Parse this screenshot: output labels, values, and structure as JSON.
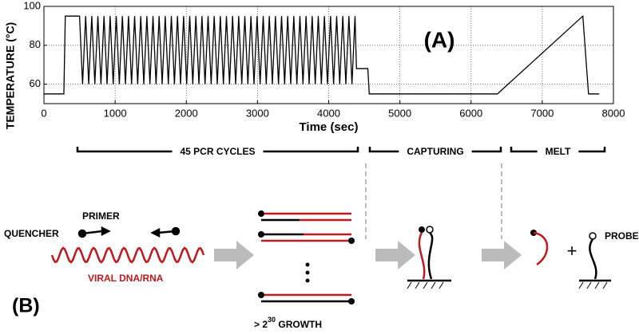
{
  "chart_data": {
    "type": "line",
    "xlabel": "Time (sec)",
    "ylabel": "TEMPERATURE (°C)",
    "annotations": [
      "(A)"
    ],
    "phases": [
      "45 PCR CYCLES",
      "CAPTURING",
      "MELT"
    ],
    "xlim": [
      0,
      8000
    ],
    "xticks": [
      0,
      1000,
      2000,
      3000,
      4000,
      5000,
      6000,
      7000,
      8000
    ],
    "ylim": [
      50,
      100
    ],
    "yticks": [
      60,
      80,
      100
    ],
    "grid": true,
    "series": [
      {
        "name": "Temperature",
        "color": "#000000",
        "x": [
          0,
          280,
          300,
          500,
          543,
          586,
          629,
          672,
          715,
          758,
          801,
          844,
          887,
          930,
          973,
          1016,
          1059,
          1102,
          1145,
          1188,
          1231,
          1274,
          1317,
          1360,
          1403,
          1446,
          1489,
          1532,
          1575,
          1618,
          1661,
          1704,
          1747,
          1790,
          1833,
          1876,
          1919,
          1962,
          2005,
          2048,
          2091,
          2134,
          2177,
          2220,
          2263,
          2306,
          2349,
          2392,
          2435,
          2478,
          2521,
          2564,
          2607,
          2650,
          2693,
          2736,
          2779,
          2822,
          2865,
          2908,
          2951,
          2994,
          3037,
          3080,
          3123,
          3166,
          3209,
          3252,
          3295,
          3338,
          3381,
          3424,
          3467,
          3510,
          3553,
          3596,
          3639,
          3682,
          3725,
          3768,
          3811,
          3854,
          3897,
          3940,
          3983,
          4026,
          4069,
          4112,
          4155,
          4198,
          4241,
          4284,
          4327,
          4370,
          4390,
          4550,
          4570,
          6370,
          7570,
          7650,
          7800
        ],
        "values": [
          55,
          55,
          95,
          95,
          60,
          95,
          60,
          95,
          60,
          95,
          60,
          95,
          60,
          95,
          60,
          95,
          60,
          95,
          60,
          95,
          60,
          95,
          60,
          95,
          60,
          95,
          60,
          95,
          60,
          95,
          60,
          95,
          60,
          95,
          60,
          95,
          60,
          95,
          60,
          95,
          60,
          95,
          60,
          95,
          60,
          95,
          60,
          95,
          60,
          95,
          60,
          95,
          60,
          95,
          60,
          95,
          60,
          95,
          60,
          95,
          60,
          95,
          60,
          95,
          60,
          95,
          60,
          95,
          60,
          95,
          60,
          95,
          60,
          95,
          60,
          95,
          60,
          95,
          60,
          95,
          60,
          95,
          60,
          95,
          60,
          95,
          60,
          95,
          60,
          95,
          60,
          95,
          60,
          95,
          68,
          68,
          55,
          55,
          95,
          55,
          55
        ]
      }
    ]
  },
  "diagram": {
    "label": "(B)",
    "quencher": "QUENCHER",
    "primer": "PRIMER",
    "target": "VIRAL DNA/RNA",
    "growth": {
      "prefix": "> 2",
      "exponent": "30",
      "suffix": " GROWTH"
    },
    "plus": "+",
    "probe": "PROBE"
  }
}
